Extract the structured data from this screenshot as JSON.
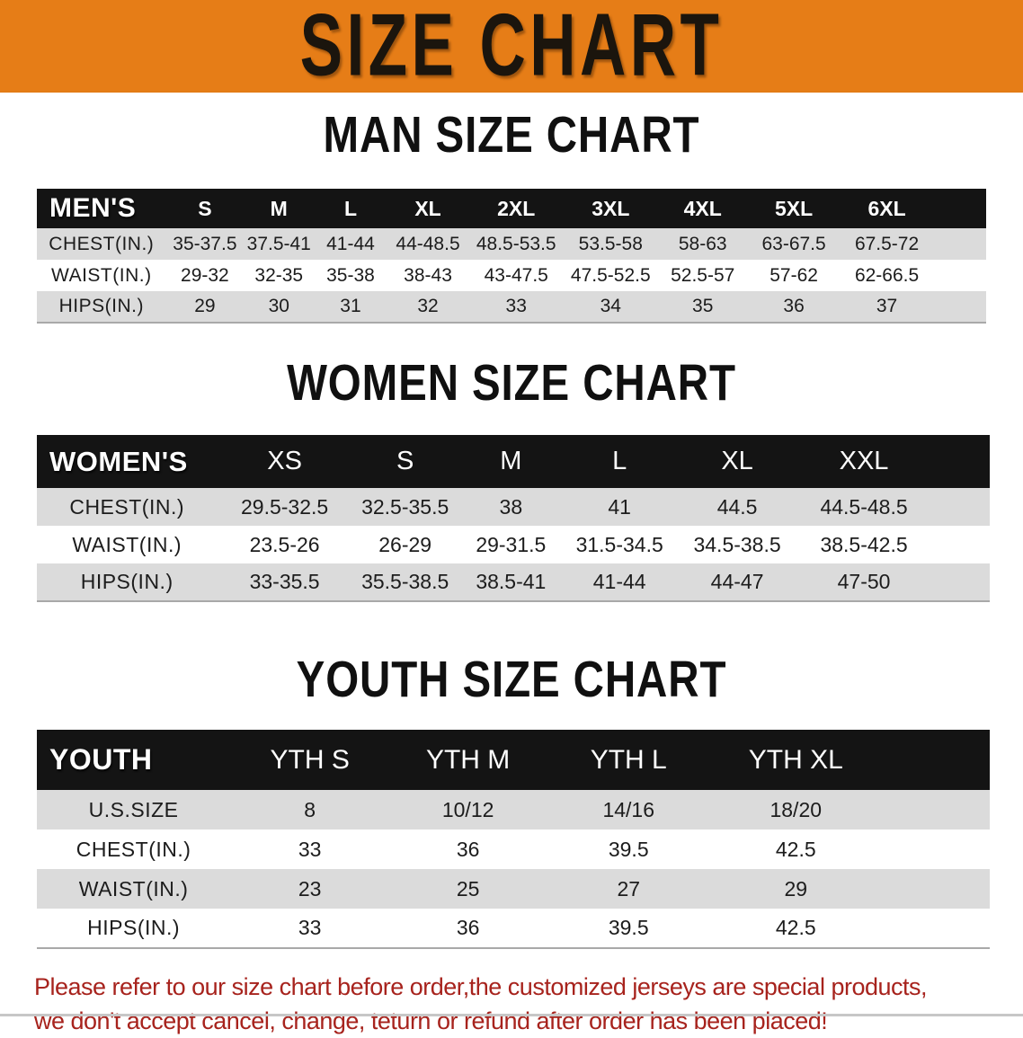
{
  "banner": {
    "title": "SIZE CHART",
    "bg_color": "#E67D17",
    "text_color": "#1B150D"
  },
  "colors": {
    "table_header_bg": "#141414",
    "shaded_row_bg": "#DBDBDB",
    "footer_text": "#A7231D"
  },
  "sections": [
    {
      "id": "men",
      "title": "MAN SIZE CHART",
      "table": {
        "corner_label": "MEN'S",
        "columns": [
          "S",
          "M",
          "L",
          "XL",
          "2XL",
          "3XL",
          "4XL",
          "5XL",
          "6XL"
        ],
        "rows": [
          {
            "label": "CHEST(IN.)",
            "values": [
              "35-37.5",
              "37.5-41",
              "41-44",
              "44-48.5",
              "48.5-53.5",
              "53.5-58",
              "58-63",
              "63-67.5",
              "67.5-72"
            ]
          },
          {
            "label": "WAIST(IN.)",
            "values": [
              "29-32",
              "32-35",
              "35-38",
              "38-43",
              "43-47.5",
              "47.5-52.5",
              "52.5-57",
              "57-62",
              "62-66.5"
            ]
          },
          {
            "label": "HIPS(IN.)",
            "values": [
              "29",
              "30",
              "31",
              "32",
              "33",
              "34",
              "35",
              "36",
              "37"
            ]
          }
        ]
      }
    },
    {
      "id": "women",
      "title": "WOMEN SIZE CHART",
      "table": {
        "corner_label": "WOMEN'S",
        "columns": [
          "XS",
          "S",
          "M",
          "L",
          "XL",
          "XXL"
        ],
        "rows": [
          {
            "label": "CHEST(IN.)",
            "values": [
              "29.5-32.5",
              "32.5-35.5",
              "38",
              "41",
              "44.5",
              "44.5-48.5"
            ]
          },
          {
            "label": "WAIST(IN.)",
            "values": [
              "23.5-26",
              "26-29",
              "29-31.5",
              "31.5-34.5",
              "34.5-38.5",
              "38.5-42.5"
            ]
          },
          {
            "label": "HIPS(IN.)",
            "values": [
              "33-35.5",
              "35.5-38.5",
              "38.5-41",
              "41-44",
              "44-47",
              "47-50"
            ]
          }
        ]
      }
    },
    {
      "id": "youth",
      "title": "YOUTH SIZE CHART",
      "table": {
        "corner_label": "YOUTH",
        "columns": [
          "YTH S",
          "YTH M",
          "YTH L",
          "YTH XL"
        ],
        "rows": [
          {
            "label": "U.S.SIZE",
            "values": [
              "8",
              "10/12",
              "14/16",
              "18/20"
            ]
          },
          {
            "label": "CHEST(IN.)",
            "values": [
              "33",
              "36",
              "39.5",
              "42.5"
            ]
          },
          {
            "label": "WAIST(IN.)",
            "values": [
              "23",
              "25",
              "27",
              "29"
            ]
          },
          {
            "label": "HIPS(IN.)",
            "values": [
              "33",
              "36",
              "39.5",
              "42.5"
            ]
          }
        ]
      }
    }
  ],
  "footer": {
    "lines": [
      "Please refer to our size chart before order,the customized jerseys are special products,",
      "we don't accept cancel, change, teturn or refund after order has been placed!"
    ]
  }
}
